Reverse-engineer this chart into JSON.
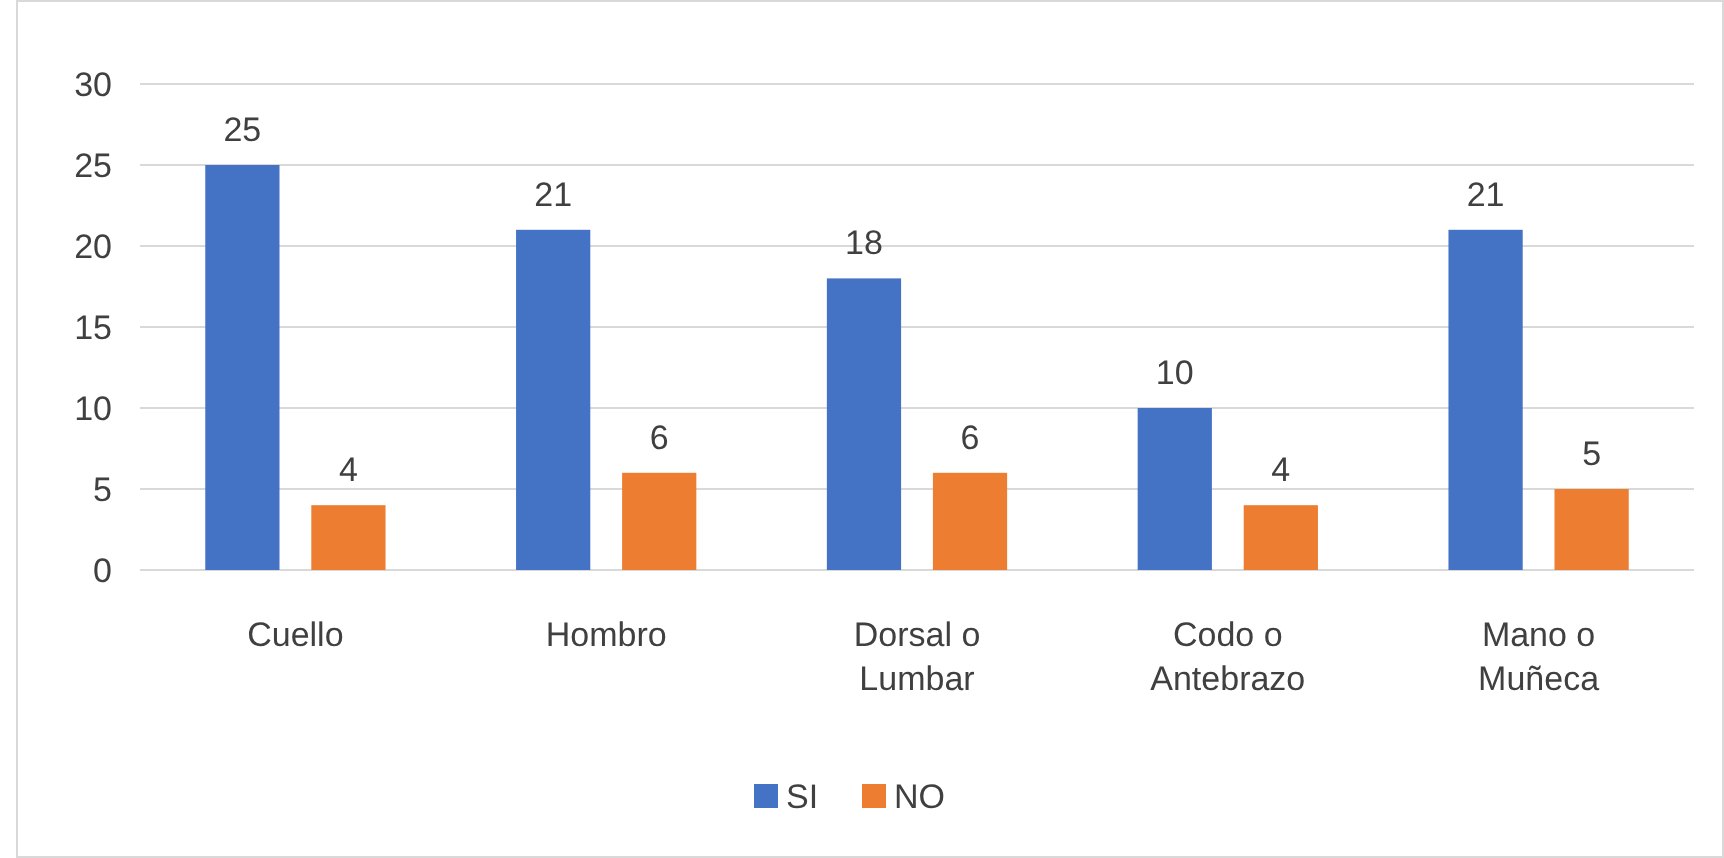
{
  "chart_data": {
    "type": "bar",
    "categories": [
      "Cuello",
      "Hombro",
      "Dorsal o Lumbar",
      "Codo o Antebrazo",
      "Mano o Muñeca"
    ],
    "series": [
      {
        "name": "SI",
        "color": "#4472c4",
        "values": [
          25,
          21,
          18,
          10,
          21
        ]
      },
      {
        "name": "NO",
        "color": "#ed7d31",
        "values": [
          4,
          6,
          6,
          4,
          5
        ]
      }
    ],
    "ylim": [
      0,
      30
    ],
    "yticks": [
      0,
      5,
      10,
      15,
      20,
      25,
      30
    ],
    "grid": "y",
    "legend": "bottom",
    "data_labels": true
  }
}
